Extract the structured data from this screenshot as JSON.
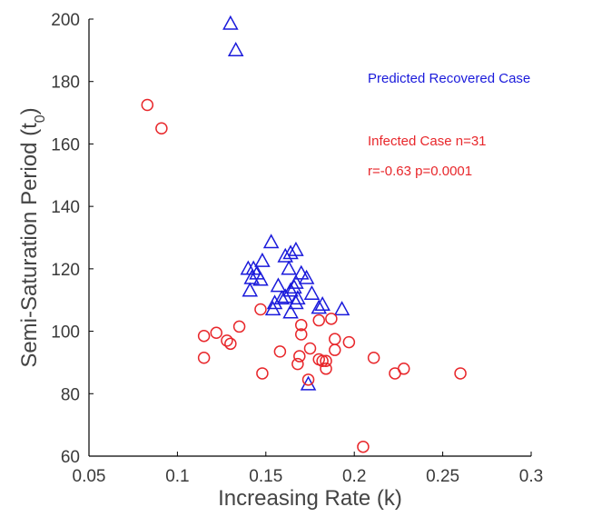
{
  "chart_data": {
    "type": "scatter",
    "title": "",
    "xlabel": "Increasing Rate (k)",
    "ylabel_main": "Semi-Saturation Period (t",
    "ylabel_sub": "0",
    "ylabel_close": ")",
    "xlim": [
      0.05,
      0.3
    ],
    "ylim": [
      60,
      200
    ],
    "xticks": [
      "0.05",
      "0.1",
      "0.15",
      "0.2",
      "0.25",
      "0.3"
    ],
    "yticks": [
      "60",
      "80",
      "100",
      "120",
      "140",
      "160",
      "180",
      "200"
    ],
    "grid": false,
    "annotations": {
      "recovered": "Predicted Recovered Case",
      "infected": "Infected Case n=31",
      "stats": "r=-0.63 p=0.0001"
    },
    "colors": {
      "recovered": "#1a1adb",
      "infected": "#e8272b",
      "axis": "#000000"
    },
    "series": [
      {
        "key": "recovered",
        "marker": "triangle",
        "points": [
          [
            0.13,
            198.5
          ],
          [
            0.133,
            190
          ],
          [
            0.153,
            128.5
          ],
          [
            0.167,
            126
          ],
          [
            0.164,
            125
          ],
          [
            0.161,
            124
          ],
          [
            0.148,
            122.5
          ],
          [
            0.14,
            120
          ],
          [
            0.143,
            120
          ],
          [
            0.163,
            120
          ],
          [
            0.145,
            118.5
          ],
          [
            0.17,
            118.5
          ],
          [
            0.142,
            117
          ],
          [
            0.173,
            117
          ],
          [
            0.147,
            116.5
          ],
          [
            0.167,
            115.5
          ],
          [
            0.157,
            114.5
          ],
          [
            0.166,
            114
          ],
          [
            0.141,
            113
          ],
          [
            0.164,
            113
          ],
          [
            0.176,
            112
          ],
          [
            0.161,
            111
          ],
          [
            0.159,
            110.5
          ],
          [
            0.168,
            110.5
          ],
          [
            0.155,
            109
          ],
          [
            0.167,
            109
          ],
          [
            0.182,
            108.5
          ],
          [
            0.18,
            107.5
          ],
          [
            0.193,
            107
          ],
          [
            0.154,
            107
          ],
          [
            0.164,
            106
          ],
          [
            0.174,
            83
          ]
        ]
      },
      {
        "key": "infected",
        "marker": "circle",
        "points": [
          [
            0.083,
            172.5
          ],
          [
            0.091,
            165
          ],
          [
            0.147,
            107
          ],
          [
            0.187,
            104
          ],
          [
            0.18,
            103.5
          ],
          [
            0.17,
            102
          ],
          [
            0.135,
            101.5
          ],
          [
            0.122,
            99.5
          ],
          [
            0.17,
            99
          ],
          [
            0.115,
            98.5
          ],
          [
            0.189,
            97.5
          ],
          [
            0.128,
            97
          ],
          [
            0.13,
            96
          ],
          [
            0.197,
            96.5
          ],
          [
            0.175,
            94.5
          ],
          [
            0.189,
            94
          ],
          [
            0.158,
            93.5
          ],
          [
            0.115,
            91.5
          ],
          [
            0.169,
            92
          ],
          [
            0.211,
            91.5
          ],
          [
            0.18,
            91
          ],
          [
            0.184,
            90.5
          ],
          [
            0.182,
            90.5
          ],
          [
            0.168,
            89.5
          ],
          [
            0.228,
            88
          ],
          [
            0.184,
            88
          ],
          [
            0.148,
            86.5
          ],
          [
            0.223,
            86.5
          ],
          [
            0.26,
            86.5
          ],
          [
            0.174,
            84.5
          ],
          [
            0.205,
            63
          ]
        ]
      }
    ]
  }
}
